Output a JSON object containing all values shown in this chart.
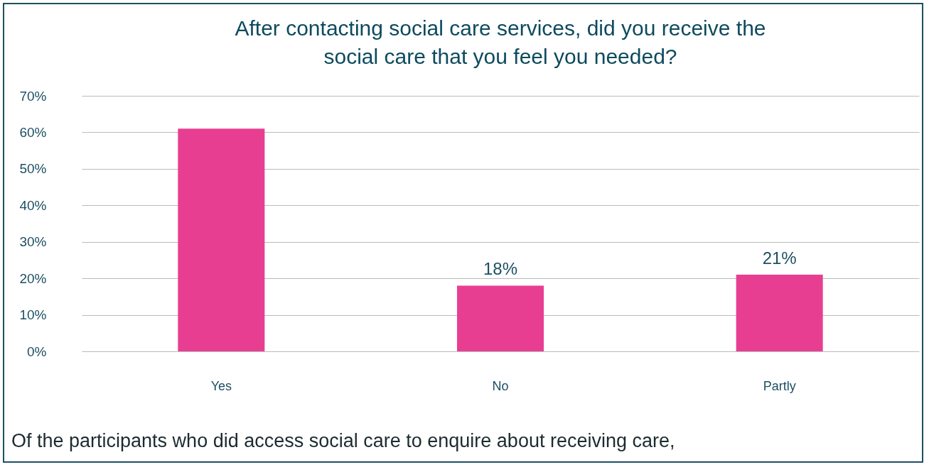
{
  "chart_data": {
    "type": "bar",
    "title": "After contacting social care services, did you receive the social care that you feel you needed?",
    "categories": [
      "Yes",
      "No",
      "Partly"
    ],
    "values": [
      61,
      18,
      21
    ],
    "value_labels": [
      null,
      "18%",
      "21%"
    ],
    "color": "#e83e92",
    "ylim": [
      0,
      70
    ],
    "yticks": [
      {
        "value": 0,
        "label": "0%"
      },
      {
        "value": 10,
        "label": "10%"
      },
      {
        "value": 20,
        "label": "20%"
      },
      {
        "value": 30,
        "label": "30%"
      },
      {
        "value": 40,
        "label": "40%"
      },
      {
        "value": 50,
        "label": "50%"
      },
      {
        "value": 60,
        "label": "60%"
      },
      {
        "value": 70,
        "label": "70%"
      }
    ],
    "grid": "y",
    "annotations": [
      "Of the participants who did access social care to enquire about receiving care,"
    ]
  }
}
